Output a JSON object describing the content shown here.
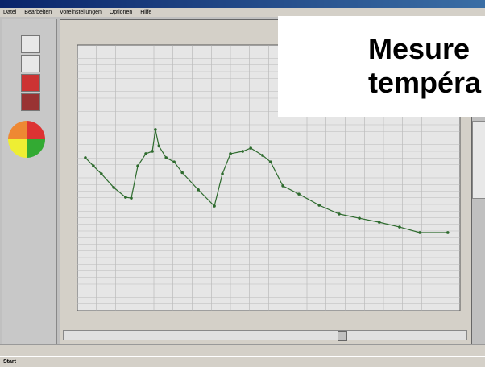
{
  "menu": [
    "Datei",
    "Bearbeiten",
    "Voreinstellungen",
    "Optionen",
    "Hilfe"
  ],
  "overlay": {
    "line1": "Mesure",
    "line2": "tempéra"
  },
  "taskbar": {
    "start": "Start"
  },
  "chart_data": {
    "type": "line",
    "x": [
      2.1,
      4.2,
      6.3,
      9.5,
      12.6,
      14.1,
      15.8,
      17.9,
      19.6,
      20.4,
      21.3,
      23.2,
      25.3,
      27.4,
      31.6,
      35.8,
      37.9,
      40,
      43.2,
      45.3,
      48.4,
      50.5,
      53.7,
      57.9,
      63.2,
      68.4,
      73.7,
      78.9,
      84.2,
      89.5,
      96.8
    ],
    "series": [
      {
        "color": "#2e6b2e",
        "values": [
          57.6,
          54.5,
          51.5,
          46.4,
          42.7,
          42.4,
          54.5,
          59.1,
          60,
          68.2,
          62,
          57.6,
          56,
          52,
          45.5,
          39.4,
          51.5,
          59.1,
          60,
          61.2,
          58.5,
          56,
          47,
          43.9,
          39.7,
          36.4,
          34.8,
          33.3,
          31.5,
          29.4,
          29.4
        ]
      }
    ],
    "xlim": [
      0,
      100
    ],
    "ylim": [
      0,
      100
    ],
    "grid": true
  }
}
